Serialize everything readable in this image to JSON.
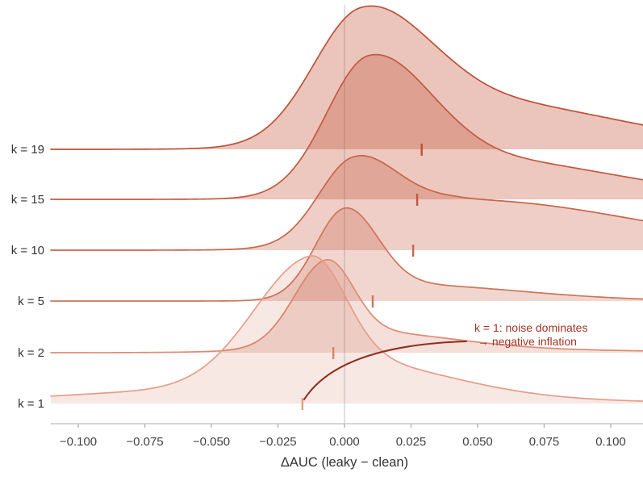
{
  "chart_data": {
    "type": "area",
    "subtype": "ridgeline",
    "title": "",
    "xlabel": "ΔAUC (leaky − clean)",
    "x_tick_values": [
      -0.1,
      -0.075,
      -0.05,
      -0.025,
      0.0,
      0.025,
      0.05,
      0.075,
      0.1
    ],
    "x_tick_labels": [
      "−0.100",
      "−0.075",
      "−0.050",
      "−0.025",
      "0.000",
      "0.025",
      "0.050",
      "0.075",
      "0.100"
    ],
    "x_range": [
      -0.1103,
      0.1121
    ],
    "zero_reference_line_x": 0.0,
    "grid": "zero-line-only",
    "rows": [
      {
        "label": "k = 19",
        "k": 19,
        "median": 0.029,
        "mode": 0.006,
        "height_rel": 0.97,
        "stroke": "#bd5138",
        "fill_alpha": 0.33,
        "components": [
          {
            "mu": 0.006,
            "sl": 0.018,
            "sr": 0.024,
            "w": 0.74
          },
          {
            "mu": 0.048,
            "sl": 0.035,
            "sr": 0.055,
            "w": 0.3
          }
        ]
      },
      {
        "label": "k = 15",
        "k": 15,
        "median": 0.0273,
        "mode": 0.009,
        "height_rel": 0.98,
        "stroke": "#c25a41",
        "fill_alpha": 0.31,
        "components": [
          {
            "mu": 0.009,
            "sl": 0.016,
            "sr": 0.022,
            "w": 0.76
          },
          {
            "mu": 0.05,
            "sl": 0.032,
            "sr": 0.052,
            "w": 0.24
          }
        ]
      },
      {
        "label": "k = 10",
        "k": 10,
        "median": 0.0258,
        "mode": 0.003,
        "height_rel": 0.64,
        "stroke": "#c9654b",
        "fill_alpha": 0.28,
        "components": [
          {
            "mu": 0.003,
            "sl": 0.013,
            "sr": 0.016,
            "w": 0.62
          },
          {
            "mu": 0.045,
            "sl": 0.03,
            "sr": 0.065,
            "w": 0.42
          }
        ]
      },
      {
        "label": "k = 5",
        "k": 5,
        "median": 0.0106,
        "mode": 0.0,
        "height_rel": 0.63,
        "stroke": "#d17459",
        "fill_alpha": 0.23,
        "components": [
          {
            "mu": 0.0,
            "sl": 0.011,
            "sr": 0.012,
            "w": 0.8
          },
          {
            "mu": 0.02,
            "sl": 0.02,
            "sr": 0.045,
            "w": 0.16
          }
        ]
      },
      {
        "label": "k = 2",
        "k": 2,
        "median": -0.0042,
        "mode": -0.007,
        "height_rel": 0.63,
        "stroke": "#dd8c72",
        "fill_alpha": 0.18,
        "components": [
          {
            "mu": -0.007,
            "sl": 0.012,
            "sr": 0.01,
            "w": 0.82
          },
          {
            "mu": 0.008,
            "sl": 0.018,
            "sr": 0.032,
            "w": 0.17
          },
          {
            "mu": 0.0,
            "sl": 0.03,
            "sr": 0.08,
            "w": 0.05
          }
        ]
      },
      {
        "label": "k = 1",
        "k": 1,
        "median": -0.0158,
        "mode": -0.012,
        "height_rel": 1.0,
        "stroke": "#e59e87",
        "fill_alpha": 0.13,
        "components": [
          {
            "mu": -0.013,
            "sl": 0.022,
            "sr": 0.013,
            "w": 0.7
          },
          {
            "mu": 0.0,
            "sl": 0.025,
            "sr": 0.038,
            "w": 0.22
          },
          {
            "mu": -0.06,
            "sl": 0.05,
            "sr": 0.09,
            "w": 0.08
          }
        ]
      }
    ],
    "annotation": {
      "line1": "k = 1: noise dominates",
      "line2": "→  negative inflation",
      "points_to": "k = 1 median tick"
    },
    "legend": "none"
  },
  "colors": {
    "background": "#ffffff",
    "fill_base": "#c14f32",
    "axis_line": "#c9c9c9",
    "axis_tick": "#b8b8b8",
    "zero_line": "#d4d4d4",
    "tick_label": "#424242",
    "row_label": "#363636",
    "axis_title": "#333333",
    "annotation_text": "#a23527",
    "annotation_connector": "#8f2f1f"
  }
}
